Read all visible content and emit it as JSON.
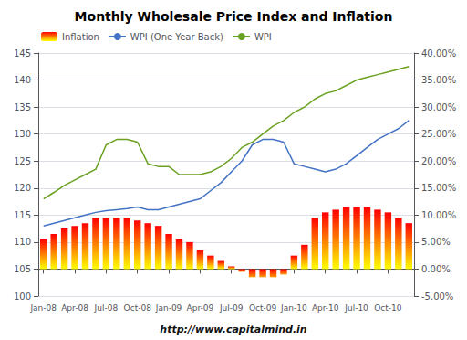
{
  "chart_data": {
    "type": "bar",
    "title": "Monthly Wholesale Price Index and Inflation",
    "subtitle": "http://www.capitalmind.in",
    "categories": [
      "Jan-08",
      null,
      null,
      "Apr-08",
      null,
      null,
      "Jul-08",
      null,
      null,
      "Oct-08",
      null,
      null,
      "Jan-09",
      null,
      null,
      "Apr-09",
      null,
      null,
      "Jul-09",
      null,
      null,
      "Oct-09",
      null,
      null,
      "Jan-10",
      null,
      null,
      "Apr-10",
      null,
      null,
      "Jul-10",
      null,
      null,
      "Oct-10",
      null,
      null
    ],
    "series": [
      {
        "name": "Inflation",
        "type": "bar",
        "axis": "y2",
        "color": "#ff0000",
        "values": [
          5.5,
          6.5,
          7.5,
          8.0,
          8.5,
          9.5,
          9.5,
          9.5,
          9.5,
          9.0,
          8.5,
          8.0,
          6.5,
          5.5,
          5.0,
          3.5,
          2.5,
          1.5,
          0.5,
          -0.5,
          -1.5,
          -1.5,
          -1.5,
          -1.0,
          2.5,
          4.5,
          9.5,
          10.5,
          11.0,
          11.5,
          11.5,
          11.5,
          11.0,
          10.5,
          9.5,
          8.5
        ]
      },
      {
        "name": "WPI (One Year Back)",
        "type": "line",
        "color": "#4472c4",
        "values": [
          113.0,
          113.5,
          114.0,
          114.5,
          115.0,
          115.5,
          115.8,
          116.0,
          116.2,
          116.5,
          116.0,
          116.0,
          116.5,
          117.0,
          117.5,
          118.0,
          119.5,
          121.0,
          123.0,
          125.0,
          128.0,
          129.0,
          129.0,
          128.5,
          124.5,
          124.0,
          123.5,
          123.0,
          123.5,
          124.5,
          126.0,
          127.5,
          129.0,
          130.0,
          131.0,
          132.5
        ]
      },
      {
        "name": "WPI",
        "type": "line",
        "color": "#6aa121",
        "values": [
          118.0,
          119.2,
          120.5,
          121.5,
          122.5,
          123.5,
          128.0,
          129.0,
          129.0,
          128.5,
          124.5,
          124.0,
          124.0,
          122.5,
          122.5,
          122.5,
          123.0,
          124.0,
          125.5,
          127.5,
          128.5,
          130.0,
          131.5,
          132.5,
          134.0,
          135.0,
          136.5,
          137.5,
          138.0,
          139.0,
          140.0,
          140.5,
          141.0,
          141.5,
          142.0,
          142.5
        ]
      }
    ],
    "ylim": [
      100,
      145
    ],
    "yticks": [
      100,
      105,
      110,
      115,
      120,
      125,
      130,
      135,
      140,
      145
    ],
    "y2lim": [
      -5.0,
      40.0
    ],
    "y2ticks": [
      {
        "value": -5,
        "label": "-5.00%"
      },
      {
        "value": 0,
        "label": "0.00%"
      },
      {
        "value": 5,
        "label": "5.00%"
      },
      {
        "value": 10,
        "label": "10.00%"
      },
      {
        "value": 15,
        "label": "15.00%"
      },
      {
        "value": 20,
        "label": "20.00%"
      },
      {
        "value": 25,
        "label": "25.00%"
      },
      {
        "value": 30,
        "label": "30.00%"
      },
      {
        "value": 35,
        "label": "35.00%"
      },
      {
        "value": 40,
        "label": "40.00%"
      }
    ],
    "grid": true,
    "legend": "upper left"
  }
}
